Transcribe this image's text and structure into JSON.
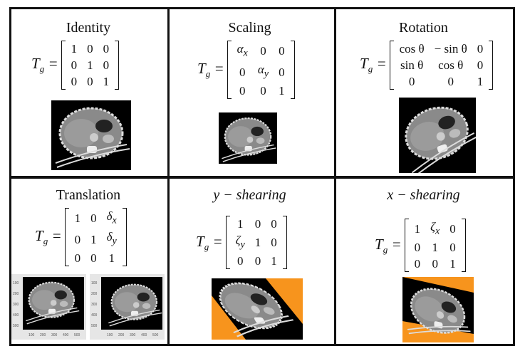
{
  "panels": [
    {
      "title": "Identity",
      "italic": false,
      "tg": "T",
      "tg_sub": "g",
      "matrix": [
        [
          "1",
          "0",
          "0"
        ],
        [
          "0",
          "1",
          "0"
        ],
        [
          "0",
          "0",
          "1"
        ]
      ]
    },
    {
      "title": "Scaling",
      "italic": false,
      "tg": "T",
      "tg_sub": "g",
      "matrix": [
        [
          "αx",
          "0",
          "0"
        ],
        [
          "0",
          "αy",
          "0"
        ],
        [
          "0",
          "0",
          "1"
        ]
      ]
    },
    {
      "title": "Rotation",
      "italic": false,
      "tg": "T",
      "tg_sub": "g",
      "matrix": [
        [
          "cos θ",
          "− sin θ",
          "0"
        ],
        [
          "sin θ",
          "cos θ",
          "0"
        ],
        [
          "0",
          "0",
          "1"
        ]
      ]
    },
    {
      "title": "Translation",
      "italic": false,
      "tg": "T",
      "tg_sub": "g",
      "matrix": [
        [
          "1",
          "0",
          "δx"
        ],
        [
          "0",
          "1",
          "δy"
        ],
        [
          "0",
          "0",
          "1"
        ]
      ]
    },
    {
      "title": "y − shearing",
      "italic": true,
      "tg": "T",
      "tg_sub": "g",
      "matrix": [
        [
          "1",
          "0",
          "0"
        ],
        [
          "ζy",
          "1",
          "0"
        ],
        [
          "0",
          "0",
          "1"
        ]
      ]
    },
    {
      "title": "x − shearing",
      "italic": true,
      "tg": "T",
      "tg_sub": "g",
      "matrix": [
        [
          "1",
          "ζx",
          "0"
        ],
        [
          "0",
          "1",
          "0"
        ],
        [
          "0",
          "0",
          "1"
        ]
      ]
    }
  ],
  "translation_plots": {
    "y_ticks": [
      "100",
      "200",
      "300",
      "400",
      "500"
    ],
    "x_ticks": [
      "100",
      "200",
      "300",
      "400",
      "500"
    ]
  },
  "colors": {
    "shear_background": "#f7941d",
    "scan_background": "#000000",
    "border": "#111111"
  }
}
